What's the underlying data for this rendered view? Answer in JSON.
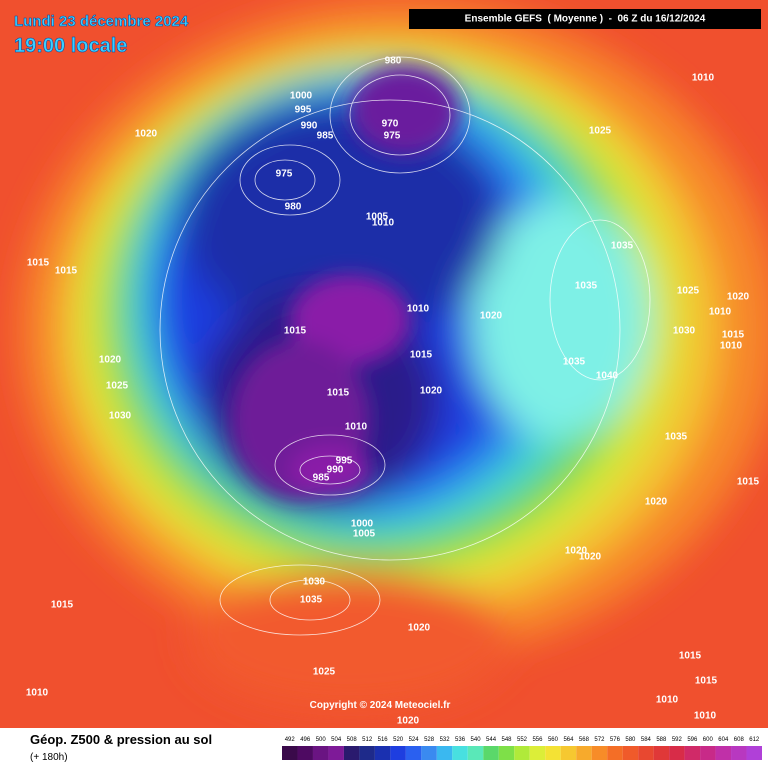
{
  "header": {
    "date": "Lundi 23 décembre 2024",
    "time": "19:00 locale",
    "run": "Ensemble GEFS  ( Moyenne )  -  06 Z du 16/12/2024"
  },
  "isobar_labels": [
    980,
    1000,
    995,
    990,
    985,
    970,
    975,
    975,
    980,
    1020,
    1010,
    1025,
    1005,
    1010,
    1015,
    1015,
    1035,
    1035,
    1010,
    1020,
    1025,
    1020,
    1030,
    1010,
    1015,
    1010,
    1015,
    1015,
    1035,
    1040,
    1020,
    1025,
    1030,
    1015,
    1020,
    1010,
    995,
    990,
    985,
    1035,
    1020,
    1015,
    1000,
    1005,
    1020,
    1020,
    1030,
    1035,
    1015,
    1020,
    1025,
    1010,
    1015,
    1015,
    1010,
    1010,
    1020
  ],
  "copyright": "Copyright © 2024 Meteociel.fr",
  "footer": {
    "title": "Géop. Z500 & pression au sol",
    "subtitle": "(+ 180h)"
  },
  "scale": {
    "ticks": [
      492,
      496,
      500,
      504,
      508,
      512,
      516,
      520,
      524,
      528,
      532,
      536,
      540,
      544,
      548,
      552,
      556,
      560,
      564,
      568,
      572,
      576,
      580,
      584,
      588,
      592,
      596,
      600,
      604,
      608,
      612
    ]
  }
}
